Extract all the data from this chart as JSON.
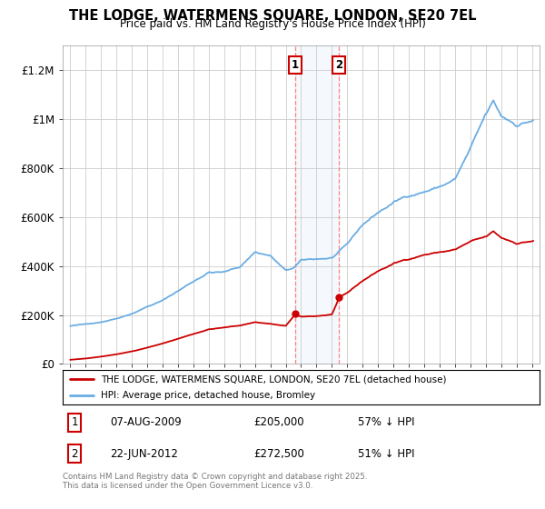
{
  "title": "THE LODGE, WATERMENS SQUARE, LONDON, SE20 7EL",
  "subtitle": "Price paid vs. HM Land Registry's House Price Index (HPI)",
  "legend_line1": "THE LODGE, WATERMENS SQUARE, LONDON, SE20 7EL (detached house)",
  "legend_line2": "HPI: Average price, detached house, Bromley",
  "footnote": "Contains HM Land Registry data © Crown copyright and database right 2025.\nThis data is licensed under the Open Government Licence v3.0.",
  "transaction1_date": "07-AUG-2009",
  "transaction1_price": 205000,
  "transaction1_note": "57% ↓ HPI",
  "transaction2_date": "22-JUN-2012",
  "transaction2_price": 272500,
  "transaction2_note": "51% ↓ HPI",
  "transaction1_x": 2009.6,
  "transaction2_x": 2012.47,
  "hpi_color": "#6aade4",
  "price_color": "#cc0000",
  "shaded_color": "#ddeeff",
  "ylim_max": 1300000,
  "yticks": [
    0,
    200000,
    400000,
    600000,
    800000,
    1000000,
    1200000
  ],
  "ytick_labels": [
    "£0",
    "£200K",
    "£400K",
    "£600K",
    "£800K",
    "£1M",
    "£1.2M"
  ]
}
